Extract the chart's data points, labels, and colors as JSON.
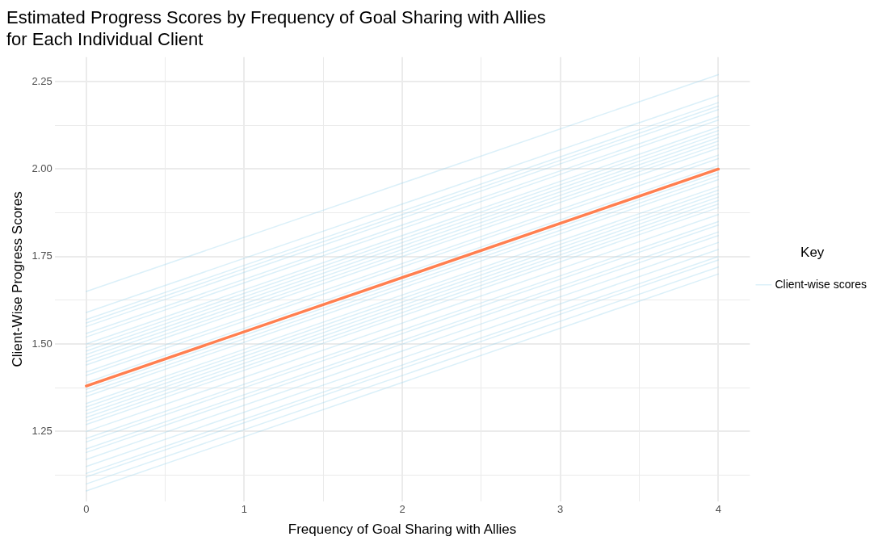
{
  "chart_data": {
    "type": "line",
    "title": "Estimated Progress Scores by Frequency of Goal Sharing with Allies\nfor Each Individual Client",
    "xlabel": "Frequency of Goal Sharing with Allies",
    "ylabel": "Client-Wise Progress Scores",
    "legend_title": "Key",
    "legend": "right",
    "grid": true,
    "marker": "none",
    "line_style": "solid",
    "x": [
      0,
      4
    ],
    "xlim": [
      -0.2,
      4.2
    ],
    "xticks": [
      0,
      {
        "value": 0.5,
        "label": null
      },
      1,
      {
        "value": 1.5,
        "label": null
      },
      2,
      {
        "value": 2.5,
        "label": null
      },
      3,
      {
        "value": 3.5,
        "label": null
      },
      4
    ],
    "ylim": [
      1.05,
      2.32
    ],
    "yticks": [
      {
        "value": 1.125,
        "label": null
      },
      {
        "value": 1.25,
        "label": "1.25"
      },
      {
        "value": 1.375,
        "label": null
      },
      {
        "value": 1.5,
        "label": "1.50"
      },
      {
        "value": 1.625,
        "label": null
      },
      {
        "value": 1.75,
        "label": "1.75"
      },
      {
        "value": 1.875,
        "label": null
      },
      {
        "value": 2.0,
        "label": "2.00"
      },
      {
        "value": 2.125,
        "label": null
      },
      {
        "value": 2.25,
        "label": "2.25"
      }
    ],
    "series": [
      {
        "name": "Client-wise scores",
        "color": "#87ceeb",
        "values": [
          1.65,
          2.27
        ]
      },
      {
        "color": "#87ceeb",
        "values": [
          1.59,
          2.21
        ]
      },
      {
        "color": "#87ceeb",
        "values": [
          1.57,
          2.19
        ]
      },
      {
        "color": "#87ceeb",
        "values": [
          1.56,
          2.18
        ]
      },
      {
        "color": "#87ceeb",
        "values": [
          1.55,
          2.17
        ]
      },
      {
        "color": "#87ceeb",
        "values": [
          1.53,
          2.15
        ]
      },
      {
        "color": "#87ceeb",
        "values": [
          1.52,
          2.14
        ]
      },
      {
        "color": "#87ceeb",
        "values": [
          1.5,
          2.12
        ]
      },
      {
        "color": "#87ceeb",
        "values": [
          1.49,
          2.11
        ]
      },
      {
        "color": "#87ceeb",
        "values": [
          1.48,
          2.1
        ]
      },
      {
        "color": "#87ceeb",
        "values": [
          1.47,
          2.09
        ]
      },
      {
        "color": "#87ceeb",
        "values": [
          1.46,
          2.08
        ]
      },
      {
        "color": "#87ceeb",
        "values": [
          1.45,
          2.07
        ]
      },
      {
        "color": "#87ceeb",
        "values": [
          1.44,
          2.06
        ]
      },
      {
        "color": "#87ceeb",
        "values": [
          1.42,
          2.04
        ]
      },
      {
        "color": "#87ceeb",
        "values": [
          1.41,
          2.03
        ]
      },
      {
        "color": "#87ceeb",
        "values": [
          1.39,
          2.01
        ]
      },
      {
        "color": "#87ceeb",
        "values": [
          1.37,
          1.99
        ]
      },
      {
        "color": "#87ceeb",
        "values": [
          1.36,
          1.98
        ]
      },
      {
        "color": "#87ceeb",
        "values": [
          1.35,
          1.97
        ]
      },
      {
        "color": "#87ceeb",
        "values": [
          1.33,
          1.95
        ]
      },
      {
        "color": "#87ceeb",
        "values": [
          1.32,
          1.94
        ]
      },
      {
        "color": "#87ceeb",
        "values": [
          1.31,
          1.93
        ]
      },
      {
        "color": "#87ceeb",
        "values": [
          1.3,
          1.92
        ]
      },
      {
        "color": "#87ceeb",
        "values": [
          1.29,
          1.91
        ]
      },
      {
        "color": "#87ceeb",
        "values": [
          1.28,
          1.9
        ]
      },
      {
        "color": "#87ceeb",
        "values": [
          1.27,
          1.89
        ]
      },
      {
        "color": "#87ceeb",
        "values": [
          1.25,
          1.87
        ]
      },
      {
        "color": "#87ceeb",
        "values": [
          1.23,
          1.85
        ]
      },
      {
        "color": "#87ceeb",
        "values": [
          1.22,
          1.84
        ]
      },
      {
        "color": "#87ceeb",
        "values": [
          1.2,
          1.82
        ]
      },
      {
        "color": "#87ceeb",
        "values": [
          1.19,
          1.81
        ]
      },
      {
        "color": "#87ceeb",
        "values": [
          1.17,
          1.79
        ]
      },
      {
        "color": "#87ceeb",
        "values": [
          1.15,
          1.77
        ]
      },
      {
        "color": "#87ceeb",
        "values": [
          1.13,
          1.75
        ]
      },
      {
        "color": "#87ceeb",
        "values": [
          1.12,
          1.74
        ]
      },
      {
        "color": "#87ceeb",
        "values": [
          1.1,
          1.72
        ]
      },
      {
        "color": "#87ceeb",
        "values": [
          1.08,
          1.7
        ]
      },
      {
        "color": "#ff7f50",
        "values": [
          1.38,
          2.0
        ]
      }
    ]
  }
}
